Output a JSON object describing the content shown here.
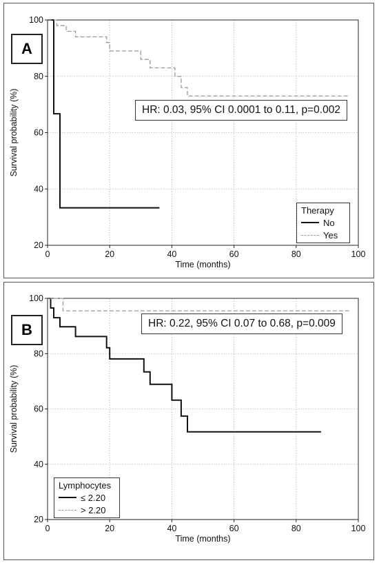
{
  "chart_data": [
    {
      "type": "line",
      "panel_label": "A",
      "ylabel": "Survival probability (%)",
      "xlabel": "Time (months)",
      "xlim": [
        0,
        100
      ],
      "ylim": [
        20,
        100
      ],
      "xticks": [
        0,
        20,
        40,
        60,
        80,
        100
      ],
      "yticks": [
        20,
        40,
        60,
        80,
        100
      ],
      "grid": true,
      "annotation": "HR: 0.03, 95% CI 0.0001 to 0.11, p=0.002",
      "legend_title": "Therapy",
      "legend_position": "bottom-right",
      "series": [
        {
          "name": "No",
          "style": "solid",
          "color": "#111111",
          "x": [
            0,
            2,
            2,
            4,
            4,
            36
          ],
          "y": [
            100,
            100,
            66.7,
            66.7,
            33.3,
            33.3
          ]
        },
        {
          "name": "Yes",
          "style": "dashed",
          "color": "#999999",
          "x": [
            0,
            3,
            3,
            6,
            6,
            9,
            9,
            19,
            19,
            20,
            20,
            30,
            30,
            33,
            33,
            37,
            37,
            41,
            41,
            43,
            43,
            45,
            45,
            97
          ],
          "y": [
            100,
            100,
            98,
            98,
            96,
            96,
            94,
            94,
            92,
            92,
            89,
            89,
            86,
            86,
            83,
            83,
            83,
            83,
            80,
            80,
            76,
            76,
            73,
            73
          ]
        }
      ]
    },
    {
      "type": "line",
      "panel_label": "B",
      "ylabel": "Survival probability (%)",
      "xlabel": "Time (months)",
      "xlim": [
        0,
        100
      ],
      "ylim": [
        20,
        100
      ],
      "xticks": [
        0,
        20,
        40,
        60,
        80,
        100
      ],
      "yticks": [
        20,
        40,
        60,
        80,
        100
      ],
      "grid": true,
      "annotation": "HR: 0.22, 95% CI 0.07 to 0.68, p=0.009",
      "legend_title": "Lymphocytes",
      "legend_position": "bottom-left",
      "series": [
        {
          "name": "≤ 2.20",
          "style": "solid",
          "color": "#111111",
          "x": [
            0,
            1,
            1,
            2,
            2,
            4,
            4,
            9,
            9,
            19,
            19,
            20,
            20,
            31,
            31,
            33,
            33,
            40,
            40,
            43,
            43,
            45,
            45,
            88
          ],
          "y": [
            100,
            100,
            96.5,
            96.5,
            93,
            93,
            89.7,
            89.7,
            86.2,
            86.2,
            82.1,
            82.1,
            78.1,
            78.1,
            73.4,
            73.4,
            68.9,
            68.9,
            63.2,
            63.2,
            57.4,
            57.4,
            51.7,
            51.7
          ]
        },
        {
          "name": "> 2.20",
          "style": "dashed",
          "color": "#999999",
          "x": [
            0,
            5,
            5,
            97
          ],
          "y": [
            100,
            100,
            95.5,
            95.5
          ]
        }
      ]
    }
  ]
}
